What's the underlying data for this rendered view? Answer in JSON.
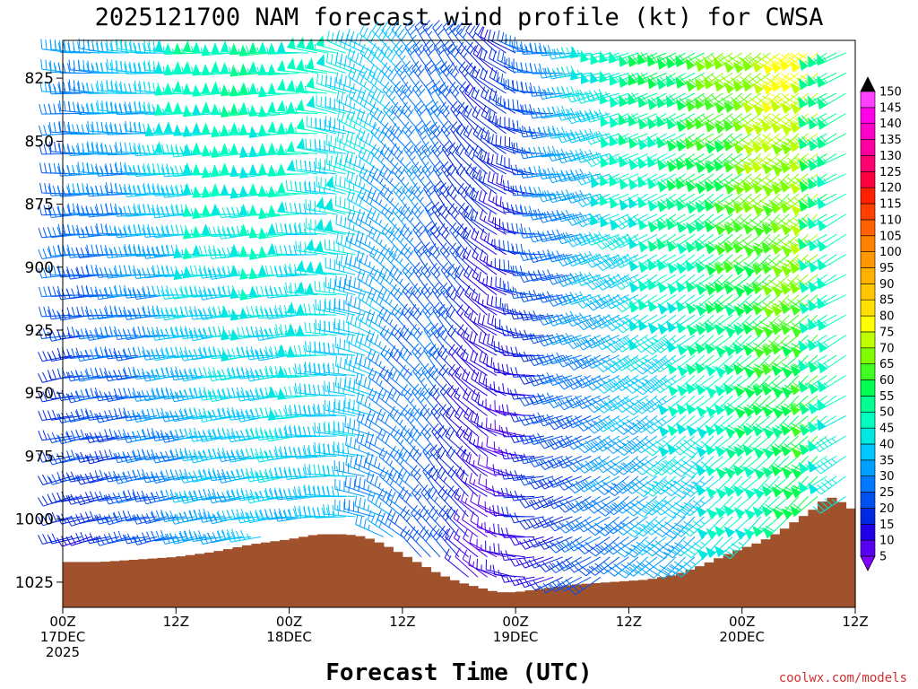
{
  "chart_data": {
    "type": "wind-barb-profile",
    "title": "2025121700 NAM forecast wind profile (kt) for CWSA",
    "xlabel": "Forecast Time (UTC)",
    "ylabel": "",
    "units": "kt",
    "credit": "coolwx.com/models",
    "x_range_hours": [
      0,
      84
    ],
    "y_range_hPa": [
      810,
      1035
    ],
    "x_ticks": [
      {
        "hour": 0,
        "line1": "00Z",
        "line2": "17DEC",
        "line3": "2025"
      },
      {
        "hour": 12,
        "line1": "12Z",
        "line2": "",
        "line3": ""
      },
      {
        "hour": 24,
        "line1": "00Z",
        "line2": "18DEC",
        "line3": ""
      },
      {
        "hour": 36,
        "line1": "12Z",
        "line2": "",
        "line3": ""
      },
      {
        "hour": 48,
        "line1": "00Z",
        "line2": "19DEC",
        "line3": ""
      },
      {
        "hour": 60,
        "line1": "12Z",
        "line2": "",
        "line3": ""
      },
      {
        "hour": 72,
        "line1": "00Z",
        "line2": "20DEC",
        "line3": ""
      },
      {
        "hour": 84,
        "line1": "12Z",
        "line2": "",
        "line3": ""
      }
    ],
    "y_ticks": [
      825,
      850,
      875,
      900,
      925,
      950,
      975,
      1000,
      1025
    ],
    "colorbar": {
      "levels": [
        5,
        10,
        15,
        20,
        25,
        30,
        35,
        40,
        45,
        50,
        55,
        60,
        65,
        70,
        75,
        80,
        85,
        90,
        95,
        100,
        105,
        110,
        115,
        120,
        125,
        130,
        135,
        140,
        145,
        150
      ],
      "colors": [
        "#8000ff",
        "#5a00f0",
        "#2000e8",
        "#0028e0",
        "#0050f0",
        "#0078ff",
        "#00a0ff",
        "#00c8ff",
        "#00e8e0",
        "#00ffc0",
        "#00ff90",
        "#00ff50",
        "#40ff20",
        "#80ff00",
        "#c0ff00",
        "#ffff00",
        "#ffe000",
        "#ffc800",
        "#ffb000",
        "#ff9800",
        "#ff8000",
        "#ff6000",
        "#ff4000",
        "#ff2000",
        "#ff0040",
        "#ff0070",
        "#ff00a0",
        "#ff00c8",
        "#ff00e8",
        "#ff40ff"
      ]
    },
    "terrain_surface": [
      {
        "hour": 0,
        "hPa": 1017
      },
      {
        "hour": 4,
        "hPa": 1017
      },
      {
        "hour": 8,
        "hPa": 1016
      },
      {
        "hour": 12,
        "hPa": 1015
      },
      {
        "hour": 16,
        "hPa": 1013
      },
      {
        "hour": 20,
        "hPa": 1010
      },
      {
        "hour": 24,
        "hPa": 1008
      },
      {
        "hour": 27,
        "hPa": 1006
      },
      {
        "hour": 30,
        "hPa": 1006
      },
      {
        "hour": 32,
        "hPa": 1007
      },
      {
        "hour": 34,
        "hPa": 1010
      },
      {
        "hour": 36,
        "hPa": 1014
      },
      {
        "hour": 38,
        "hPa": 1018
      },
      {
        "hour": 40,
        "hPa": 1022
      },
      {
        "hour": 42,
        "hPa": 1025
      },
      {
        "hour": 44,
        "hPa": 1027
      },
      {
        "hour": 46,
        "hPa": 1029
      },
      {
        "hour": 48,
        "hPa": 1029
      },
      {
        "hour": 50,
        "hPa": 1028
      },
      {
        "hour": 54,
        "hPa": 1026
      },
      {
        "hour": 58,
        "hPa": 1025
      },
      {
        "hour": 62,
        "hPa": 1024
      },
      {
        "hour": 65,
        "hPa": 1022
      },
      {
        "hour": 68,
        "hPa": 1018
      },
      {
        "hour": 71,
        "hPa": 1013
      },
      {
        "hour": 74,
        "hPa": 1009
      },
      {
        "hour": 76,
        "hPa": 1005
      },
      {
        "hour": 78,
        "hPa": 1000
      },
      {
        "hour": 80,
        "hPa": 995
      },
      {
        "hour": 81,
        "hPa": 991
      },
      {
        "hour": 82,
        "hPa": 992
      },
      {
        "hour": 84,
        "hPa": 997
      }
    ],
    "wind_profile_keyframes": [
      {
        "hour": 0,
        "dir_low": 250,
        "dir_high": 275,
        "spd_low": 18,
        "spd_high": 34
      },
      {
        "hour": 8,
        "dir_low": 255,
        "dir_high": 275,
        "spd_low": 22,
        "spd_high": 42
      },
      {
        "hour": 16,
        "dir_low": 258,
        "dir_high": 270,
        "spd_low": 35,
        "spd_high": 55
      },
      {
        "hour": 24,
        "dir_low": 260,
        "dir_high": 268,
        "spd_low": 40,
        "spd_high": 55
      },
      {
        "hour": 31,
        "dir_low": 270,
        "dir_high": 290,
        "spd_low": 40,
        "spd_high": 48
      },
      {
        "hour": 36,
        "dir_low": 305,
        "dir_high": 320,
        "spd_low": 30,
        "spd_high": 38
      },
      {
        "hour": 40,
        "dir_low": 320,
        "dir_high": 330,
        "spd_low": 28,
        "spd_high": 30
      },
      {
        "hour": 44,
        "dir_low": 310,
        "dir_high": 320,
        "spd_low": 14,
        "spd_high": 25
      },
      {
        "hour": 48,
        "dir_low": 280,
        "dir_high": 300,
        "spd_low": 12,
        "spd_high": 22
      },
      {
        "hour": 52,
        "dir_low": 245,
        "dir_high": 270,
        "spd_low": 20,
        "spd_high": 34
      },
      {
        "hour": 60,
        "dir_low": 230,
        "dir_high": 250,
        "spd_low": 30,
        "spd_high": 55
      },
      {
        "hour": 68,
        "dir_low": 225,
        "dir_high": 240,
        "spd_low": 40,
        "spd_high": 65
      },
      {
        "hour": 76,
        "dir_low": 225,
        "dir_high": 230,
        "spd_low": 50,
        "spd_high": 80
      },
      {
        "hour": 80,
        "dir_low": 225,
        "dir_high": 232,
        "spd_low": 55,
        "spd_high": 82
      },
      {
        "hour": 81,
        "dir_low": 232,
        "dir_high": 240,
        "spd_low": 50,
        "spd_high": 60
      },
      {
        "hour": 84,
        "dir_low": 238,
        "dir_high": 245,
        "spd_low": 45,
        "spd_high": 55
      }
    ]
  }
}
